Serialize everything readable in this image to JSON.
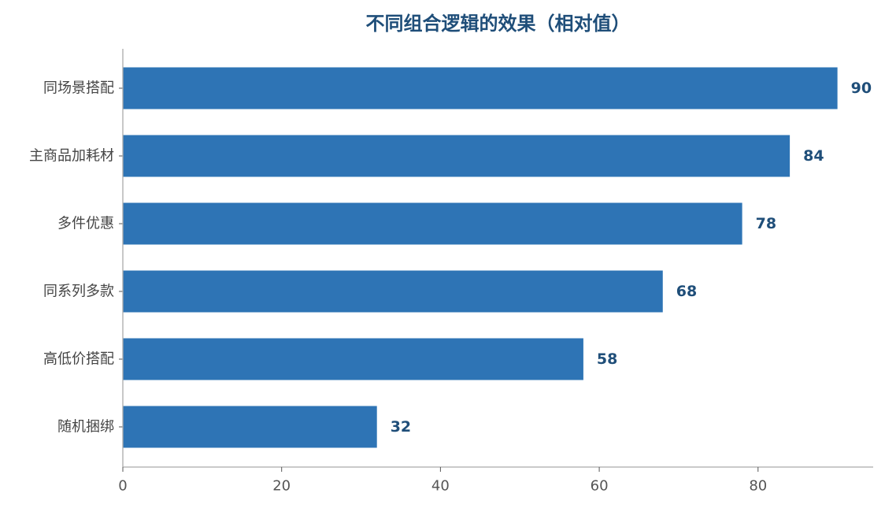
{
  "chart_data": {
    "type": "bar",
    "orientation": "horizontal",
    "title": "不同组合逻辑的效果（相对值）",
    "xlabel": "",
    "ylabel": "",
    "categories": [
      "同场景搭配",
      "主商品加耗材",
      "多件优惠",
      "同系列多款",
      "高低价搭配",
      "随机捆绑"
    ],
    "values": [
      90,
      84,
      78,
      68,
      58,
      32
    ],
    "xlim": [
      0,
      94.5
    ],
    "xticks": [
      0,
      20,
      40,
      60,
      80
    ],
    "grid": false,
    "bar_color": "#2e74b5",
    "label_color": "#1f4e79",
    "data_labels": true
  }
}
